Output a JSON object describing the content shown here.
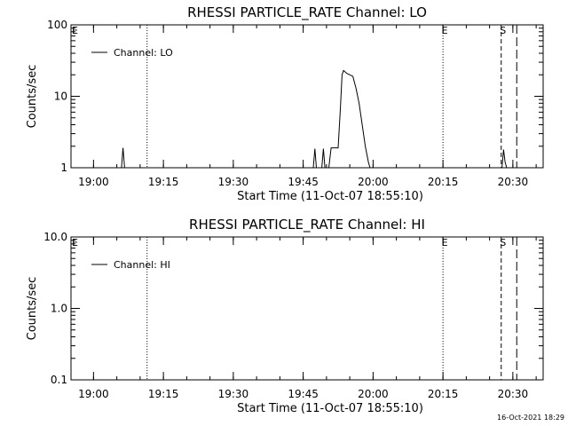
{
  "footer": {
    "timestamp": "16-Oct-2021 18:29"
  },
  "chart_data": [
    {
      "type": "line",
      "title": "RHESSI PARTICLE_RATE Channel: LO",
      "xlabel": "Start Time (11-Oct-07 18:55:10)",
      "ylabel": "Counts/sec",
      "yscale": "log",
      "ylim": [
        1,
        100
      ],
      "y_ticks": [
        "1",
        "10",
        "100"
      ],
      "xlim": [
        "18:55:10",
        "20:36:30"
      ],
      "x_ticks": [
        "19:00",
        "19:15",
        "19:30",
        "19:45",
        "20:00",
        "20:15",
        "20:30"
      ],
      "grid": false,
      "legend": {
        "position": "top-left",
        "entries": [
          "Channel: LO"
        ]
      },
      "event_lines": [
        {
          "label": "",
          "time": "19:11:30",
          "style": "dotted"
        },
        {
          "label": "E",
          "time": "20:15:00",
          "style": "dotted"
        },
        {
          "label": "S",
          "time": "20:27:30",
          "style": "dashed"
        },
        {
          "label": "",
          "time": "20:30:50",
          "style": "long-dashed"
        }
      ],
      "edge_labels": [
        "E"
      ],
      "series": [
        {
          "name": "Channel: LO",
          "points": [
            [
              "19:06:00",
              1
            ],
            [
              "19:06:20",
              1.9
            ],
            [
              "19:06:40",
              1
            ],
            [
              "19:47:10",
              1
            ],
            [
              "19:47:30",
              1.85
            ],
            [
              "19:47:50",
              1
            ],
            [
              "19:49:00",
              1
            ],
            [
              "19:49:20",
              1.85
            ],
            [
              "19:49:40",
              1
            ],
            [
              "19:50:30",
              1
            ],
            [
              "19:51:00",
              1.9
            ],
            [
              "19:52:30",
              1.9
            ],
            [
              "19:53:00",
              7
            ],
            [
              "19:53:20",
              20
            ],
            [
              "19:53:40",
              23
            ],
            [
              "19:54:20",
              21
            ],
            [
              "19:55:00",
              20
            ],
            [
              "19:55:40",
              19
            ],
            [
              "19:56:20",
              13
            ],
            [
              "19:57:00",
              8
            ],
            [
              "19:57:40",
              4
            ],
            [
              "19:58:20",
              2
            ],
            [
              "19:59:00",
              1.2
            ],
            [
              "19:59:20",
              1
            ],
            [
              "20:27:40",
              1
            ],
            [
              "20:28:00",
              1.8
            ],
            [
              "20:28:20",
              1.2
            ],
            [
              "20:28:40",
              1
            ]
          ]
        }
      ]
    },
    {
      "type": "line",
      "title": "RHESSI PARTICLE_RATE Channel: HI",
      "xlabel": "Start Time (11-Oct-07 18:55:10)",
      "ylabel": "Counts/sec",
      "yscale": "log",
      "ylim": [
        0.1,
        10
      ],
      "y_ticks": [
        "0.1",
        "1.0",
        "10.0"
      ],
      "xlim": [
        "18:55:10",
        "20:36:30"
      ],
      "x_ticks": [
        "19:00",
        "19:15",
        "19:30",
        "19:45",
        "20:00",
        "20:15",
        "20:30"
      ],
      "grid": false,
      "legend": {
        "position": "top-left",
        "entries": [
          "Channel: HI"
        ]
      },
      "event_lines": [
        {
          "label": "",
          "time": "19:11:30",
          "style": "dotted"
        },
        {
          "label": "E",
          "time": "20:15:00",
          "style": "dotted"
        },
        {
          "label": "S",
          "time": "20:27:30",
          "style": "dashed"
        },
        {
          "label": "",
          "time": "20:30:50",
          "style": "long-dashed"
        }
      ],
      "edge_labels": [
        "E"
      ],
      "series": [
        {
          "name": "Channel: HI",
          "points": []
        }
      ]
    }
  ]
}
